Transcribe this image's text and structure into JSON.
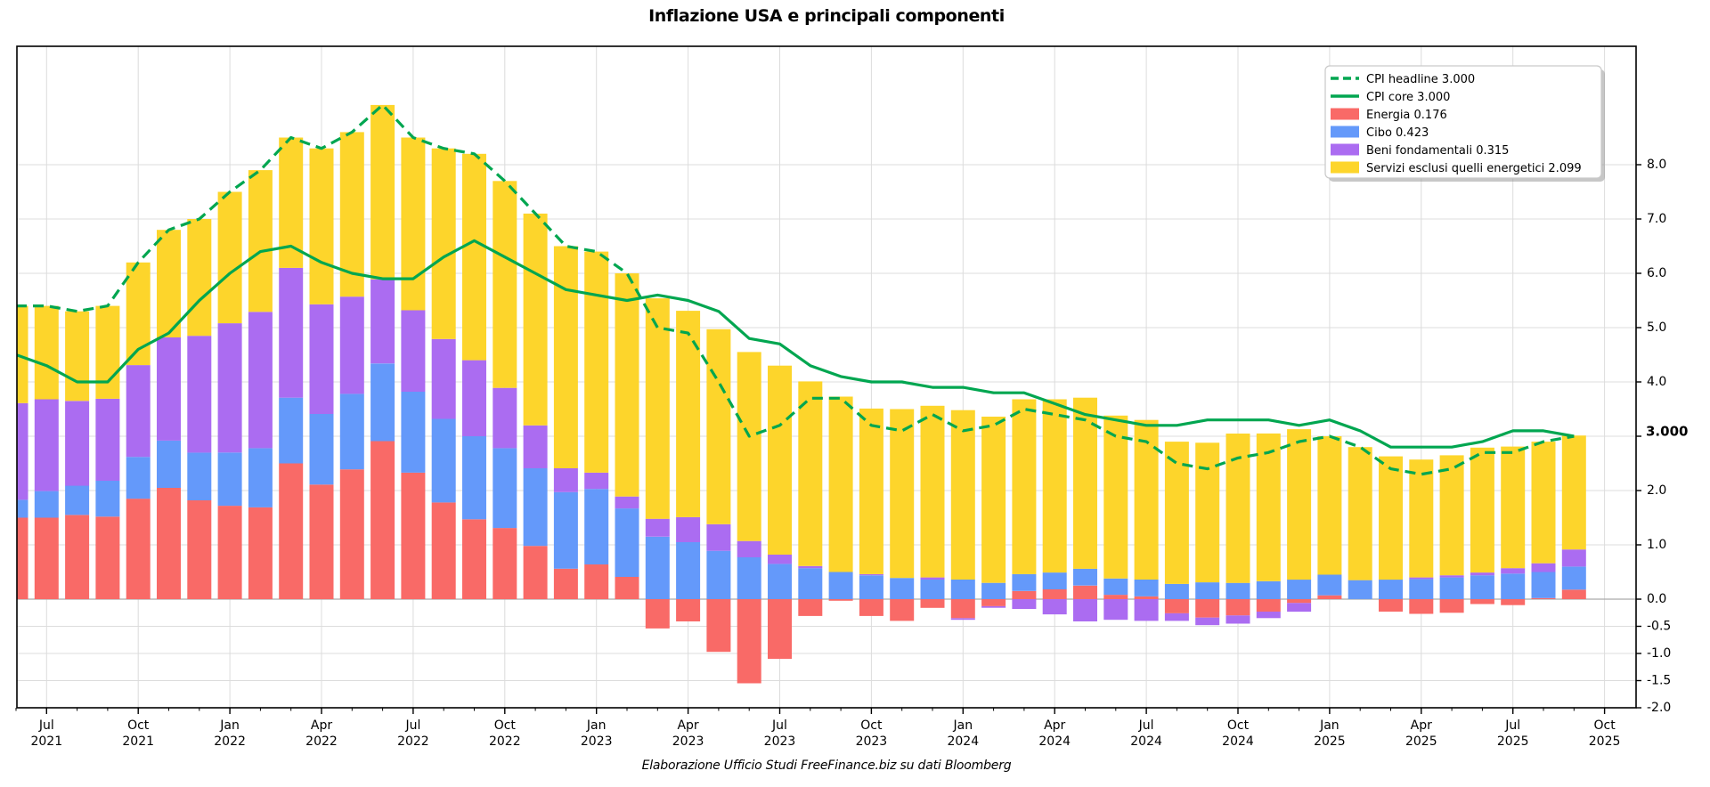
{
  "title": "Inflazione USA e principali componenti",
  "footer": "Elaborazione Ufficio Studi FreeFinance.biz su dati Bloomberg",
  "annotation": {
    "text": "3.000",
    "value": 3.0,
    "color": "#00a650"
  },
  "colors": {
    "headline": "#00a650",
    "core": "#00a650",
    "energia": "#f96a67",
    "cibo": "#6499fa",
    "beni": "#ab6cf1",
    "servizi": "#fdd52b",
    "grid": "#dcdcdc",
    "zero_line": "#aaaaaa",
    "axis": "#000000",
    "legend_border": "#c9c9c9",
    "legend_shadow": "#999999"
  },
  "legend": {
    "items": [
      {
        "label": "CPI headline 3.000",
        "swatch": "dashed-line",
        "color": "#00a650"
      },
      {
        "label": "CPI core 3.000",
        "swatch": "solid-line",
        "color": "#00a650"
      },
      {
        "label": "Energia 0.176",
        "swatch": "patch",
        "color": "#f96a67"
      },
      {
        "label": "Cibo 0.423",
        "swatch": "patch",
        "color": "#6499fa"
      },
      {
        "label": "Beni fondamentali 0.315",
        "swatch": "patch",
        "color": "#ab6cf1"
      },
      {
        "label": "Servizi esclusi quelli energetici 2.099",
        "swatch": "patch",
        "color": "#fdd52b"
      }
    ]
  },
  "axes": {
    "y_ticks": [
      {
        "v": 8,
        "label": "8.0"
      },
      {
        "v": 7,
        "label": "7.0"
      },
      {
        "v": 6,
        "label": "6.0"
      },
      {
        "v": 5,
        "label": "5.0"
      },
      {
        "v": 4,
        "label": "4.0"
      },
      {
        "v": 3,
        "label": ""
      },
      {
        "v": 2,
        "label": "2.0"
      },
      {
        "v": 1,
        "label": "1.0"
      },
      {
        "v": 0,
        "label": "0.0"
      },
      {
        "v": -0.5,
        "label": "-0.5"
      },
      {
        "v": -1,
        "label": "-1.0"
      },
      {
        "v": -1.5,
        "label": "-1.5"
      },
      {
        "v": -2,
        "label": "-2.0"
      }
    ],
    "y_gridlines": [
      8,
      7,
      6,
      5,
      4,
      3,
      2,
      1,
      -0.5,
      -1,
      -1.5
    ],
    "x_ticks": [
      {
        "index": 1,
        "month": "Jul",
        "year": "2021"
      },
      {
        "index": 4,
        "month": "Oct",
        "year": "2021"
      },
      {
        "index": 7,
        "month": "Jan",
        "year": "2022"
      },
      {
        "index": 10,
        "month": "Apr",
        "year": "2022"
      },
      {
        "index": 13,
        "month": "Jul",
        "year": "2022"
      },
      {
        "index": 16,
        "month": "Oct",
        "year": "2022"
      },
      {
        "index": 19,
        "month": "Jan",
        "year": "2023"
      },
      {
        "index": 22,
        "month": "Apr",
        "year": "2023"
      },
      {
        "index": 25,
        "month": "Jul",
        "year": "2023"
      },
      {
        "index": 28,
        "month": "Oct",
        "year": "2023"
      },
      {
        "index": 31,
        "month": "Jan",
        "year": "2024"
      },
      {
        "index": 34,
        "month": "Apr",
        "year": "2024"
      },
      {
        "index": 37,
        "month": "Jul",
        "year": "2024"
      },
      {
        "index": 40,
        "month": "Oct",
        "year": "2024"
      },
      {
        "index": 43,
        "month": "Jan",
        "year": "2025"
      },
      {
        "index": 46,
        "month": "Apr",
        "year": "2025"
      },
      {
        "index": 49,
        "month": "Jul",
        "year": "2025"
      },
      {
        "index": 52,
        "month": "Oct",
        "year": "2025"
      }
    ]
  },
  "chart_data": {
    "type": "bar",
    "subtype": "stacked-bars-with-lines",
    "title": "Inflazione USA e principali componenti",
    "xlabel": "",
    "ylabel": "",
    "ylim": [
      -2.0,
      10.18
    ],
    "grid": true,
    "legend_position": "upper right",
    "x": [
      "2021-06",
      "2021-07",
      "2021-08",
      "2021-09",
      "2021-10",
      "2021-11",
      "2021-12",
      "2022-01",
      "2022-02",
      "2022-03",
      "2022-04",
      "2022-05",
      "2022-06",
      "2022-07",
      "2022-08",
      "2022-09",
      "2022-10",
      "2022-11",
      "2022-12",
      "2023-01",
      "2023-02",
      "2023-03",
      "2023-04",
      "2023-05",
      "2023-06",
      "2023-07",
      "2023-08",
      "2023-09",
      "2023-10",
      "2023-11",
      "2023-12",
      "2024-01",
      "2024-02",
      "2024-03",
      "2024-04",
      "2024-05",
      "2024-06",
      "2024-07",
      "2024-08",
      "2024-09",
      "2024-10",
      "2024-11",
      "2024-12",
      "2025-01",
      "2025-02",
      "2025-03",
      "2025-04",
      "2025-05",
      "2025-06",
      "2025-07",
      "2025-08",
      "2025-09"
    ],
    "bar_series": [
      {
        "name": "Energia",
        "color": "#f96a67",
        "values": [
          1.5,
          1.5,
          1.55,
          1.52,
          1.85,
          2.05,
          1.82,
          1.72,
          1.69,
          2.5,
          2.11,
          2.39,
          2.91,
          2.33,
          1.78,
          1.47,
          1.31,
          0.98,
          0.56,
          0.64,
          0.41,
          -0.54,
          -0.41,
          -0.97,
          -1.55,
          -1.1,
          -0.31,
          -0.03,
          -0.31,
          -0.4,
          -0.16,
          -0.35,
          -0.13,
          0.15,
          0.18,
          0.25,
          0.08,
          0.05,
          -0.26,
          -0.34,
          -0.3,
          -0.23,
          -0.07,
          0.07,
          0.0,
          -0.23,
          -0.27,
          -0.25,
          -0.09,
          -0.11,
          0.02,
          0.176
        ]
      },
      {
        "name": "Cibo",
        "color": "#6499fa",
        "values": [
          0.33,
          0.49,
          0.54,
          0.66,
          0.77,
          0.87,
          0.88,
          0.98,
          1.09,
          1.21,
          1.3,
          1.39,
          1.43,
          1.49,
          1.54,
          1.53,
          1.47,
          1.43,
          1.41,
          1.39,
          1.26,
          1.15,
          1.05,
          0.89,
          0.77,
          0.65,
          0.57,
          0.5,
          0.44,
          0.39,
          0.36,
          0.36,
          0.3,
          0.31,
          0.31,
          0.31,
          0.3,
          0.31,
          0.28,
          0.31,
          0.3,
          0.33,
          0.36,
          0.38,
          0.35,
          0.36,
          0.37,
          0.4,
          0.44,
          0.47,
          0.48,
          0.423
        ]
      },
      {
        "name": "Beni fondamentali",
        "color": "#ab6cf1",
        "values": [
          1.78,
          1.69,
          1.56,
          1.51,
          1.69,
          1.9,
          2.15,
          2.38,
          2.51,
          2.39,
          2.02,
          1.79,
          1.55,
          1.5,
          1.47,
          1.4,
          1.11,
          0.79,
          0.44,
          0.3,
          0.22,
          0.33,
          0.46,
          0.49,
          0.3,
          0.17,
          0.04,
          0.0,
          0.02,
          0.0,
          0.04,
          -0.03,
          -0.03,
          -0.18,
          -0.28,
          -0.41,
          -0.38,
          -0.4,
          -0.14,
          -0.14,
          -0.15,
          -0.12,
          -0.16,
          0.0,
          0.0,
          0.0,
          0.03,
          0.04,
          0.05,
          0.1,
          0.16,
          0.315
        ]
      },
      {
        "name": "Servizi esclusi quelli energetici",
        "color": "#fdd52b",
        "values": [
          1.79,
          1.72,
          1.65,
          1.71,
          1.89,
          1.98,
          2.15,
          2.42,
          2.61,
          2.4,
          2.87,
          3.03,
          3.21,
          3.18,
          3.51,
          3.8,
          3.81,
          3.9,
          4.09,
          4.07,
          4.11,
          4.06,
          3.8,
          3.59,
          3.48,
          3.48,
          3.4,
          3.23,
          3.05,
          3.11,
          3.16,
          3.12,
          3.06,
          3.22,
          3.19,
          3.15,
          3.0,
          2.94,
          2.62,
          2.57,
          2.75,
          2.72,
          2.77,
          2.55,
          2.45,
          2.27,
          2.17,
          2.21,
          2.3,
          2.24,
          2.24,
          2.099
        ]
      }
    ],
    "line_series": [
      {
        "name": "CPI headline",
        "style": "dashed",
        "color": "#00a650",
        "values": [
          5.4,
          5.4,
          5.3,
          5.4,
          6.2,
          6.8,
          7.0,
          7.5,
          7.9,
          8.5,
          8.3,
          8.6,
          9.1,
          8.5,
          8.3,
          8.2,
          7.7,
          7.1,
          6.5,
          6.4,
          6.0,
          5.0,
          4.9,
          4.0,
          3.0,
          3.2,
          3.7,
          3.7,
          3.2,
          3.1,
          3.4,
          3.1,
          3.2,
          3.5,
          3.4,
          3.3,
          3.0,
          2.9,
          2.5,
          2.4,
          2.6,
          2.7,
          2.9,
          3.0,
          2.8,
          2.4,
          2.3,
          2.4,
          2.7,
          2.7,
          2.9,
          3.0
        ]
      },
      {
        "name": "CPI core",
        "style": "solid",
        "color": "#00a650",
        "values": [
          4.5,
          4.3,
          4.0,
          4.0,
          4.6,
          4.9,
          5.5,
          6.0,
          6.4,
          6.5,
          6.2,
          6.0,
          5.9,
          5.9,
          6.3,
          6.6,
          6.3,
          6.0,
          5.7,
          5.6,
          5.5,
          5.6,
          5.5,
          5.3,
          4.8,
          4.7,
          4.3,
          4.1,
          4.0,
          4.0,
          3.9,
          3.9,
          3.8,
          3.8,
          3.6,
          3.4,
          3.3,
          3.2,
          3.2,
          3.3,
          3.3,
          3.3,
          3.2,
          3.3,
          3.1,
          2.8,
          2.8,
          2.8,
          2.9,
          3.1,
          3.1,
          3.0
        ]
      }
    ]
  }
}
